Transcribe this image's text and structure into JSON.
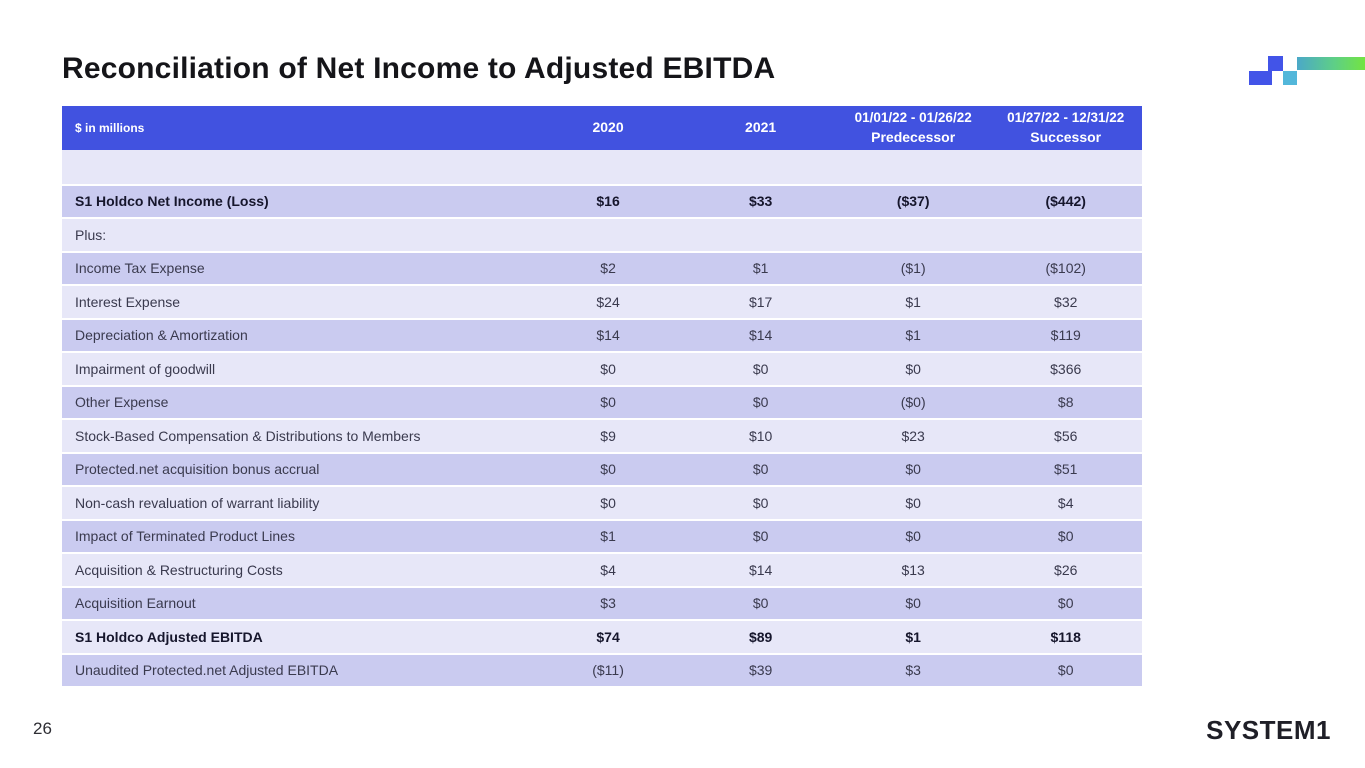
{
  "slide": {
    "title": "Reconciliation of Net Income to Adjusted EBITDA",
    "page_number": "26",
    "logo_text": "SYSTEM1"
  },
  "colors": {
    "header_bg": "#4152E0",
    "header_text": "#FFFFFF",
    "row_light": "#E7E7F8",
    "row_dark": "#CACBF0",
    "body_text": "#3A3A4E",
    "accent_blue": "#4254E8",
    "accent_teal": "#53B7DA",
    "gradient_start": "#4BA8C8",
    "gradient_end": "#73E442"
  },
  "decoration": {
    "icons": [
      "pixel-square-icon",
      "pixel-rect-icon",
      "pixel-teal-square-icon",
      "gradient-bar-icon"
    ]
  },
  "table": {
    "unit_label": "$ in millions",
    "columns": [
      {
        "label": "2020"
      },
      {
        "label": "2021"
      },
      {
        "label": "01/01/22 - 01/26/22",
        "sublabel": "Predecessor"
      },
      {
        "label": "01/27/22 - 12/31/22",
        "sublabel": "Successor"
      }
    ],
    "rows": [
      {
        "label": "",
        "values": [
          "",
          "",
          "",
          ""
        ],
        "shade": "light",
        "bold": false
      },
      {
        "label": "S1 Holdco Net Income (Loss)",
        "values": [
          "$16",
          "$33",
          "($37)",
          "($442)"
        ],
        "shade": "dark",
        "bold": true
      },
      {
        "label": "Plus:",
        "values": [
          "",
          "",
          "",
          ""
        ],
        "shade": "light",
        "bold": false
      },
      {
        "label": "Income Tax Expense",
        "values": [
          "$2",
          "$1",
          "($1)",
          "($102)"
        ],
        "shade": "dark",
        "bold": false
      },
      {
        "label": "Interest Expense",
        "values": [
          "$24",
          "$17",
          "$1",
          "$32"
        ],
        "shade": "light",
        "bold": false
      },
      {
        "label": "Depreciation & Amortization",
        "values": [
          "$14",
          "$14",
          "$1",
          "$119"
        ],
        "shade": "dark",
        "bold": false
      },
      {
        "label": "Impairment of goodwill",
        "values": [
          "$0",
          "$0",
          "$0",
          "$366"
        ],
        "shade": "light",
        "bold": false
      },
      {
        "label": "Other Expense",
        "values": [
          "$0",
          "$0",
          "($0)",
          "$8"
        ],
        "shade": "dark",
        "bold": false
      },
      {
        "label": "Stock-Based Compensation & Distributions to Members",
        "values": [
          "$9",
          "$10",
          "$23",
          "$56"
        ],
        "shade": "light",
        "bold": false
      },
      {
        "label": "Protected.net acquisition bonus accrual",
        "values": [
          "$0",
          "$0",
          "$0",
          "$51"
        ],
        "shade": "dark",
        "bold": false
      },
      {
        "label": "Non-cash revaluation of warrant liability",
        "values": [
          "$0",
          "$0",
          "$0",
          "$4"
        ],
        "shade": "light",
        "bold": false
      },
      {
        "label": "Impact of Terminated Product Lines",
        "values": [
          "$1",
          "$0",
          "$0",
          "$0"
        ],
        "shade": "dark",
        "bold": false
      },
      {
        "label": "Acquisition & Restructuring Costs",
        "values": [
          "$4",
          "$14",
          "$13",
          "$26"
        ],
        "shade": "light",
        "bold": false
      },
      {
        "label": "Acquisition Earnout",
        "values": [
          "$3",
          "$0",
          "$0",
          "$0"
        ],
        "shade": "dark",
        "bold": false
      },
      {
        "label": "S1 Holdco Adjusted EBITDA",
        "values": [
          "$74",
          "$89",
          "$1",
          "$118"
        ],
        "shade": "light",
        "bold": true
      },
      {
        "label": "Unaudited Protected.net Adjusted EBITDA",
        "values": [
          "($11)",
          "$39",
          "$3",
          "$0"
        ],
        "shade": "dark",
        "bold": false
      }
    ]
  }
}
